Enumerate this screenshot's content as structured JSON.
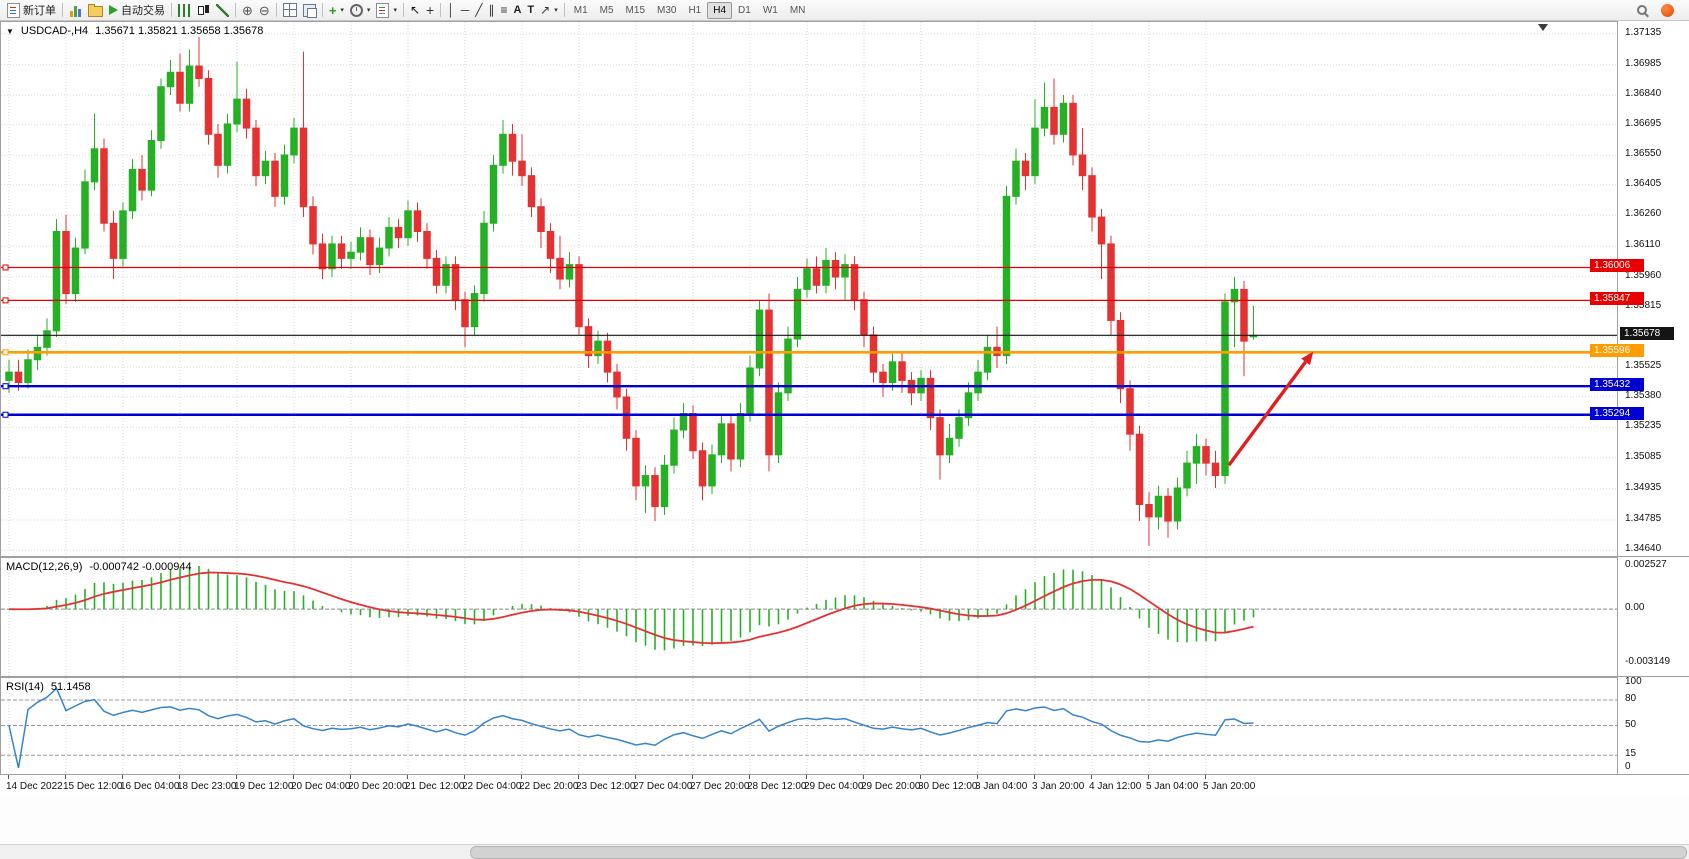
{
  "toolbar": {
    "groups": [
      {
        "items": [
          {
            "name": "new-order",
            "icon": "neworder",
            "label": "新订单"
          }
        ]
      },
      {
        "items": [
          {
            "name": "charts",
            "icon": "charts"
          },
          {
            "name": "profiles",
            "icon": "profiles"
          },
          {
            "name": "auto-trading",
            "icon": "play",
            "label": "自动交易"
          }
        ]
      },
      {
        "items": [
          {
            "name": "bar-chart",
            "icon": "bars"
          },
          {
            "name": "candlestick-chart",
            "icon": "candles"
          },
          {
            "name": "line-chart",
            "icon": "linechart"
          }
        ]
      },
      {
        "items": [
          {
            "name": "zoom-in",
            "glyph": "⊕",
            "cls": "g-zoom"
          },
          {
            "name": "zoom-out",
            "glyph": "⊖",
            "cls": "g-zoom"
          }
        ]
      },
      {
        "items": [
          {
            "name": "tile-windows",
            "icon": "gridicon"
          },
          {
            "name": "auto-arrange",
            "icon": "arrange"
          }
        ]
      },
      {
        "items": [
          {
            "name": "add-indicator",
            "glyph": "+",
            "cls": "g-add",
            "caret": true
          },
          {
            "name": "periods",
            "icon": "clock",
            "caret": true
          },
          {
            "name": "templates",
            "icon": "template",
            "caret": true
          }
        ]
      },
      {
        "items": [
          {
            "name": "cursor",
            "glyph": "↖",
            "cls": "g-cursor"
          },
          {
            "name": "crosshair",
            "glyph": "+",
            "cls": "g-cross"
          }
        ]
      },
      {
        "items": [
          {
            "name": "vertical-line",
            "glyph": "│",
            "cls": "g-tool"
          },
          {
            "name": "horizontal-line",
            "glyph": "─",
            "cls": "g-tool"
          },
          {
            "name": "trendline",
            "glyph": "╱",
            "cls": "g-tool"
          },
          {
            "name": "equidistant-channel",
            "glyph": "∥",
            "cls": "g-tool"
          },
          {
            "name": "fibonacci-retracement",
            "glyph": "≡",
            "cls": "g-tool"
          },
          {
            "name": "text",
            "glyph": "A",
            "cls": "g-text"
          },
          {
            "name": "text-label",
            "glyph": "T",
            "cls": "g-text"
          },
          {
            "name": "arrow-objects",
            "glyph": "↗",
            "cls": "g-tool",
            "caret": true
          }
        ]
      }
    ],
    "timeframes": [
      {
        "label": "M1"
      },
      {
        "label": "M5"
      },
      {
        "label": "M15"
      },
      {
        "label": "M30"
      },
      {
        "label": "H1"
      },
      {
        "label": "H4",
        "active": true
      },
      {
        "label": "D1"
      },
      {
        "label": "W1"
      },
      {
        "label": "MN"
      }
    ],
    "right": [
      {
        "name": "search",
        "icon": "search"
      },
      {
        "name": "notifications",
        "icon": "notif"
      }
    ]
  },
  "chart": {
    "collapse_glyph": "▼",
    "title": "USDCAD-,H4",
    "ohlc": "1.35671 1.35821 1.35658 1.35678"
  },
  "chart_data": {
    "type": "candlestick",
    "symbol": "USDCAD-",
    "period": "H4",
    "current_bar": {
      "open": 1.35671,
      "high": 1.35821,
      "low": 1.35658,
      "close": 1.35678
    },
    "up_color": "#25b025",
    "down_color": "#e43232",
    "price_axis": {
      "max": 1.37135,
      "min": 1.3464,
      "labels": [
        "1.37135",
        "1.36985",
        "1.36840",
        "1.36695",
        "1.36550",
        "1.36405",
        "1.36260",
        "1.36110",
        "1.35960",
        "1.35815",
        "1.35670",
        "1.35525",
        "1.35380",
        "1.35235",
        "1.35085",
        "1.34935",
        "1.34785",
        "1.34640"
      ]
    },
    "time_labels": [
      {
        "index": 0,
        "label": "14 Dec 2022"
      },
      {
        "index": 6,
        "label": "15 Dec 12:00"
      },
      {
        "index": 12,
        "label": "16 Dec 04:00"
      },
      {
        "index": 18,
        "label": "18 Dec 23:00"
      },
      {
        "index": 24,
        "label": "19 Dec 12:00"
      },
      {
        "index": 30,
        "label": "20 Dec 04:00"
      },
      {
        "index": 36,
        "label": "20 Dec 20:00"
      },
      {
        "index": 42,
        "label": "21 Dec 12:00"
      },
      {
        "index": 48,
        "label": "22 Dec 04:00"
      },
      {
        "index": 54,
        "label": "22 Dec 20:00"
      },
      {
        "index": 60,
        "label": "23 Dec 12:00"
      },
      {
        "index": 66,
        "label": "27 Dec 04:00"
      },
      {
        "index": 72,
        "label": "27 Dec 20:00"
      },
      {
        "index": 78,
        "label": "28 Dec 12:00"
      },
      {
        "index": 84,
        "label": "29 Dec 04:00"
      },
      {
        "index": 90,
        "label": "29 Dec 20:00"
      },
      {
        "index": 96,
        "label": "30 Dec 12:00"
      },
      {
        "index": 102,
        "label": "3 Jan 04:00"
      },
      {
        "index": 108,
        "label": "3 Jan 20:00"
      },
      {
        "index": 114,
        "label": "4 Jan 12:00"
      },
      {
        "index": 120,
        "label": "5 Jan 04:00"
      },
      {
        "index": 126,
        "label": "5 Jan 20:00"
      }
    ],
    "candles": [
      [
        1.3546,
        1.3556,
        1.354,
        1.355
      ],
      [
        1.355,
        1.3556,
        1.3541,
        1.3545
      ],
      [
        1.3545,
        1.3561,
        1.3542,
        1.3556
      ],
      [
        1.3556,
        1.3568,
        1.3551,
        1.3562
      ],
      [
        1.3562,
        1.3576,
        1.3558,
        1.357
      ],
      [
        1.357,
        1.3624,
        1.3567,
        1.3618
      ],
      [
        1.3618,
        1.3626,
        1.3583,
        1.3588
      ],
      [
        1.3588,
        1.3615,
        1.3584,
        1.361
      ],
      [
        1.361,
        1.3648,
        1.3607,
        1.3642
      ],
      [
        1.3642,
        1.3675,
        1.3638,
        1.3658
      ],
      [
        1.3658,
        1.3663,
        1.3618,
        1.3622
      ],
      [
        1.3622,
        1.3628,
        1.3595,
        1.3605
      ],
      [
        1.3605,
        1.3632,
        1.3601,
        1.3628
      ],
      [
        1.3628,
        1.3653,
        1.3624,
        1.3648
      ],
      [
        1.3648,
        1.3655,
        1.3633,
        1.3638
      ],
      [
        1.3638,
        1.3667,
        1.3635,
        1.3662
      ],
      [
        1.3662,
        1.3692,
        1.3658,
        1.3688
      ],
      [
        1.3688,
        1.3701,
        1.3684,
        1.3695
      ],
      [
        1.3695,
        1.3704,
        1.3676,
        1.368
      ],
      [
        1.368,
        1.3706,
        1.3676,
        1.3698
      ],
      [
        1.3698,
        1.3712,
        1.3688,
        1.3692
      ],
      [
        1.3692,
        1.3696,
        1.366,
        1.3665
      ],
      [
        1.3665,
        1.367,
        1.3644,
        1.365
      ],
      [
        1.365,
        1.3675,
        1.3646,
        1.367
      ],
      [
        1.367,
        1.37,
        1.3666,
        1.3682
      ],
      [
        1.3682,
        1.3687,
        1.3663,
        1.3668
      ],
      [
        1.3668,
        1.3672,
        1.364,
        1.3645
      ],
      [
        1.3645,
        1.3657,
        1.3641,
        1.3652
      ],
      [
        1.3652,
        1.3656,
        1.363,
        1.3635
      ],
      [
        1.3635,
        1.366,
        1.3631,
        1.3655
      ],
      [
        1.3655,
        1.3673,
        1.3651,
        1.3668
      ],
      [
        1.3668,
        1.3705,
        1.3625,
        1.363
      ],
      [
        1.363,
        1.3635,
        1.3607,
        1.3612
      ],
      [
        1.3612,
        1.3617,
        1.3595,
        1.36
      ],
      [
        1.36,
        1.3616,
        1.3596,
        1.3612
      ],
      [
        1.3612,
        1.3616,
        1.36,
        1.3605
      ],
      [
        1.3605,
        1.3613,
        1.36,
        1.3608
      ],
      [
        1.3608,
        1.362,
        1.3604,
        1.3615
      ],
      [
        1.3615,
        1.3619,
        1.3597,
        1.3602
      ],
      [
        1.3602,
        1.3615,
        1.3598,
        1.361
      ],
      [
        1.361,
        1.3625,
        1.3606,
        1.362
      ],
      [
        1.362,
        1.3624,
        1.361,
        1.3615
      ],
      [
        1.3615,
        1.3633,
        1.3611,
        1.3628
      ],
      [
        1.3628,
        1.3632,
        1.3613,
        1.3618
      ],
      [
        1.3618,
        1.3622,
        1.36,
        1.3605
      ],
      [
        1.3605,
        1.3609,
        1.3588,
        1.3592
      ],
      [
        1.3592,
        1.3606,
        1.3588,
        1.3602
      ],
      [
        1.3602,
        1.3606,
        1.358,
        1.3585
      ],
      [
        1.3585,
        1.3589,
        1.3562,
        1.3572
      ],
      [
        1.3572,
        1.3592,
        1.3568,
        1.3588
      ],
      [
        1.3588,
        1.3628,
        1.3584,
        1.3622
      ],
      [
        1.3622,
        1.3655,
        1.3618,
        1.365
      ],
      [
        1.365,
        1.3672,
        1.3646,
        1.3665
      ],
      [
        1.3665,
        1.367,
        1.3645,
        1.3652
      ],
      [
        1.3652,
        1.3665,
        1.364,
        1.3645
      ],
      [
        1.3645,
        1.3649,
        1.3625,
        1.363
      ],
      [
        1.363,
        1.3634,
        1.361,
        1.3618
      ],
      [
        1.3618,
        1.3622,
        1.3598,
        1.3605
      ],
      [
        1.3605,
        1.3616,
        1.359,
        1.3595
      ],
      [
        1.3595,
        1.3608,
        1.3591,
        1.3602
      ],
      [
        1.3602,
        1.3606,
        1.3568,
        1.3572
      ],
      [
        1.3572,
        1.3576,
        1.3552,
        1.3558
      ],
      [
        1.3558,
        1.357,
        1.3554,
        1.3565
      ],
      [
        1.3565,
        1.3569,
        1.3545,
        1.355
      ],
      [
        1.355,
        1.3554,
        1.3532,
        1.3538
      ],
      [
        1.3538,
        1.3542,
        1.3512,
        1.3518
      ],
      [
        1.3518,
        1.3522,
        1.3488,
        1.3495
      ],
      [
        1.3495,
        1.3505,
        1.3482,
        1.35
      ],
      [
        1.35,
        1.3504,
        1.3478,
        1.3485
      ],
      [
        1.3485,
        1.351,
        1.3481,
        1.3505
      ],
      [
        1.3505,
        1.3528,
        1.3501,
        1.3522
      ],
      [
        1.3522,
        1.3535,
        1.3518,
        1.353
      ],
      [
        1.353,
        1.3534,
        1.3508,
        1.3512
      ],
      [
        1.3512,
        1.3516,
        1.3488,
        1.3495
      ],
      [
        1.3495,
        1.3515,
        1.3491,
        1.351
      ],
      [
        1.351,
        1.353,
        1.3506,
        1.3525
      ],
      [
        1.3525,
        1.3529,
        1.3502,
        1.3508
      ],
      [
        1.3508,
        1.3535,
        1.3504,
        1.353
      ],
      [
        1.353,
        1.3558,
        1.3526,
        1.3552
      ],
      [
        1.3552,
        1.3585,
        1.3548,
        1.358
      ],
      [
        1.358,
        1.3588,
        1.3502,
        1.351
      ],
      [
        1.351,
        1.3545,
        1.3506,
        1.354
      ],
      [
        1.354,
        1.3572,
        1.3536,
        1.3566
      ],
      [
        1.3566,
        1.3596,
        1.3562,
        1.359
      ],
      [
        1.359,
        1.3605,
        1.3586,
        1.36
      ],
      [
        1.36,
        1.3606,
        1.3588,
        1.3592
      ],
      [
        1.3592,
        1.361,
        1.3588,
        1.3604
      ],
      [
        1.3604,
        1.3608,
        1.359,
        1.3596
      ],
      [
        1.3596,
        1.3607,
        1.3585,
        1.3602
      ],
      [
        1.3602,
        1.3606,
        1.358,
        1.3585
      ],
      [
        1.3585,
        1.3589,
        1.3562,
        1.3568
      ],
      [
        1.3568,
        1.3572,
        1.3545,
        1.355
      ],
      [
        1.355,
        1.3554,
        1.3538,
        1.3545
      ],
      [
        1.3545,
        1.356,
        1.3541,
        1.3555
      ],
      [
        1.3555,
        1.3559,
        1.354,
        1.3546
      ],
      [
        1.3546,
        1.355,
        1.3534,
        1.354
      ],
      [
        1.354,
        1.3551,
        1.3536,
        1.3547
      ],
      [
        1.3547,
        1.3551,
        1.3522,
        1.3528
      ],
      [
        1.3528,
        1.3532,
        1.3498,
        1.351
      ],
      [
        1.351,
        1.3525,
        1.3506,
        1.3518
      ],
      [
        1.3518,
        1.3532,
        1.3514,
        1.3528
      ],
      [
        1.3528,
        1.3545,
        1.3524,
        1.354
      ],
      [
        1.354,
        1.3556,
        1.3536,
        1.355
      ],
      [
        1.355,
        1.3568,
        1.3546,
        1.3562
      ],
      [
        1.3562,
        1.3572,
        1.3552,
        1.3558
      ],
      [
        1.3558,
        1.364,
        1.3554,
        1.3635
      ],
      [
        1.3635,
        1.3658,
        1.3631,
        1.3652
      ],
      [
        1.3652,
        1.3656,
        1.3638,
        1.3645
      ],
      [
        1.3645,
        1.3682,
        1.3641,
        1.3668
      ],
      [
        1.3668,
        1.369,
        1.3664,
        1.3678
      ],
      [
        1.3678,
        1.3692,
        1.366,
        1.3665
      ],
      [
        1.3665,
        1.3684,
        1.3661,
        1.368
      ],
      [
        1.368,
        1.3684,
        1.365,
        1.3655
      ],
      [
        1.3655,
        1.3668,
        1.3638,
        1.3645
      ],
      [
        1.3645,
        1.3649,
        1.3618,
        1.3625
      ],
      [
        1.3625,
        1.3629,
        1.3595,
        1.3612
      ],
      [
        1.3612,
        1.3616,
        1.3568,
        1.3575
      ],
      [
        1.3575,
        1.3579,
        1.3535,
        1.3542
      ],
      [
        1.3542,
        1.3546,
        1.3512,
        1.352
      ],
      [
        1.352,
        1.3524,
        1.3478,
        1.3486
      ],
      [
        1.3486,
        1.3492,
        1.3466,
        1.348
      ],
      [
        1.348,
        1.3495,
        1.3474,
        1.349
      ],
      [
        1.349,
        1.3494,
        1.347,
        1.3478
      ],
      [
        1.3478,
        1.3499,
        1.3474,
        1.3494
      ],
      [
        1.3494,
        1.3512,
        1.349,
        1.3506
      ],
      [
        1.3506,
        1.352,
        1.3496,
        1.3514
      ],
      [
        1.3514,
        1.3518,
        1.35,
        1.3506
      ],
      [
        1.3506,
        1.3512,
        1.3494,
        1.35
      ],
      [
        1.35,
        1.3588,
        1.3496,
        1.3584
      ],
      [
        1.3584,
        1.3596,
        1.3562,
        1.359
      ],
      [
        1.359,
        1.3594,
        1.3548,
        1.3565
      ],
      [
        1.35671,
        1.35821,
        1.35658,
        1.35678
      ]
    ],
    "hlines": [
      {
        "name": "resistance-line-1",
        "kind": "object",
        "price": 1.36006,
        "label": "1.36006",
        "color": "#e80000",
        "width": 1.3,
        "handle": true
      },
      {
        "name": "resistance-line-2",
        "kind": "object",
        "price": 1.35847,
        "label": "1.35847",
        "color": "#e80000",
        "width": 1.3,
        "handle": true
      },
      {
        "name": "current-price-line",
        "kind": "price",
        "price": 1.35678,
        "label": "1.35678",
        "color": "#141414",
        "width": 1.2,
        "handle": false
      },
      {
        "name": "orange-level-line",
        "kind": "object",
        "price": 1.35596,
        "label": "1.35596",
        "color": "#ff9d00",
        "width": 2.6,
        "handle": true
      },
      {
        "name": "support-line-1",
        "kind": "object",
        "price": 1.35432,
        "label": "1.35432",
        "color": "#0000d2",
        "width": 2.4,
        "handle": true
      },
      {
        "name": "support-line-2",
        "kind": "object",
        "price": 1.35294,
        "label": "1.35294",
        "color": "#0000d2",
        "width": 2.4,
        "handle": true
      }
    ],
    "arrow": {
      "from": {
        "index": 128.4,
        "price": 1.3505
      },
      "to": {
        "index": 137.3,
        "price": 1.356
      },
      "color": "#e02020",
      "width": 3.4
    },
    "macd": {
      "title": "MACD(12,26,9)",
      "values_text": "-0.000742 -0.000944",
      "fast": 12,
      "slow": 26,
      "signal": 9,
      "max": 0.002527,
      "min": -0.003149,
      "axis": [
        {
          "label": "0.002527",
          "value": 0.002527
        },
        {
          "label": "0.00",
          "value": 0
        },
        {
          "label": "-0.003149",
          "value": -0.003149
        }
      ],
      "hist_color": "#25b025",
      "signal_color": "#e43232"
    },
    "rsi": {
      "title": "RSI(14)",
      "value_text": "51.1458",
      "period": 14,
      "max": 100,
      "min": 0,
      "levels": [
        80,
        50,
        15
      ],
      "axis": [
        {
          "label": "100",
          "value": 100
        },
        {
          "label": "80",
          "value": 80
        },
        {
          "label": "50",
          "value": 50
        },
        {
          "label": "15",
          "value": 15
        },
        {
          "label": "0",
          "value": 0
        }
      ],
      "line_color": "#3584cc"
    }
  }
}
